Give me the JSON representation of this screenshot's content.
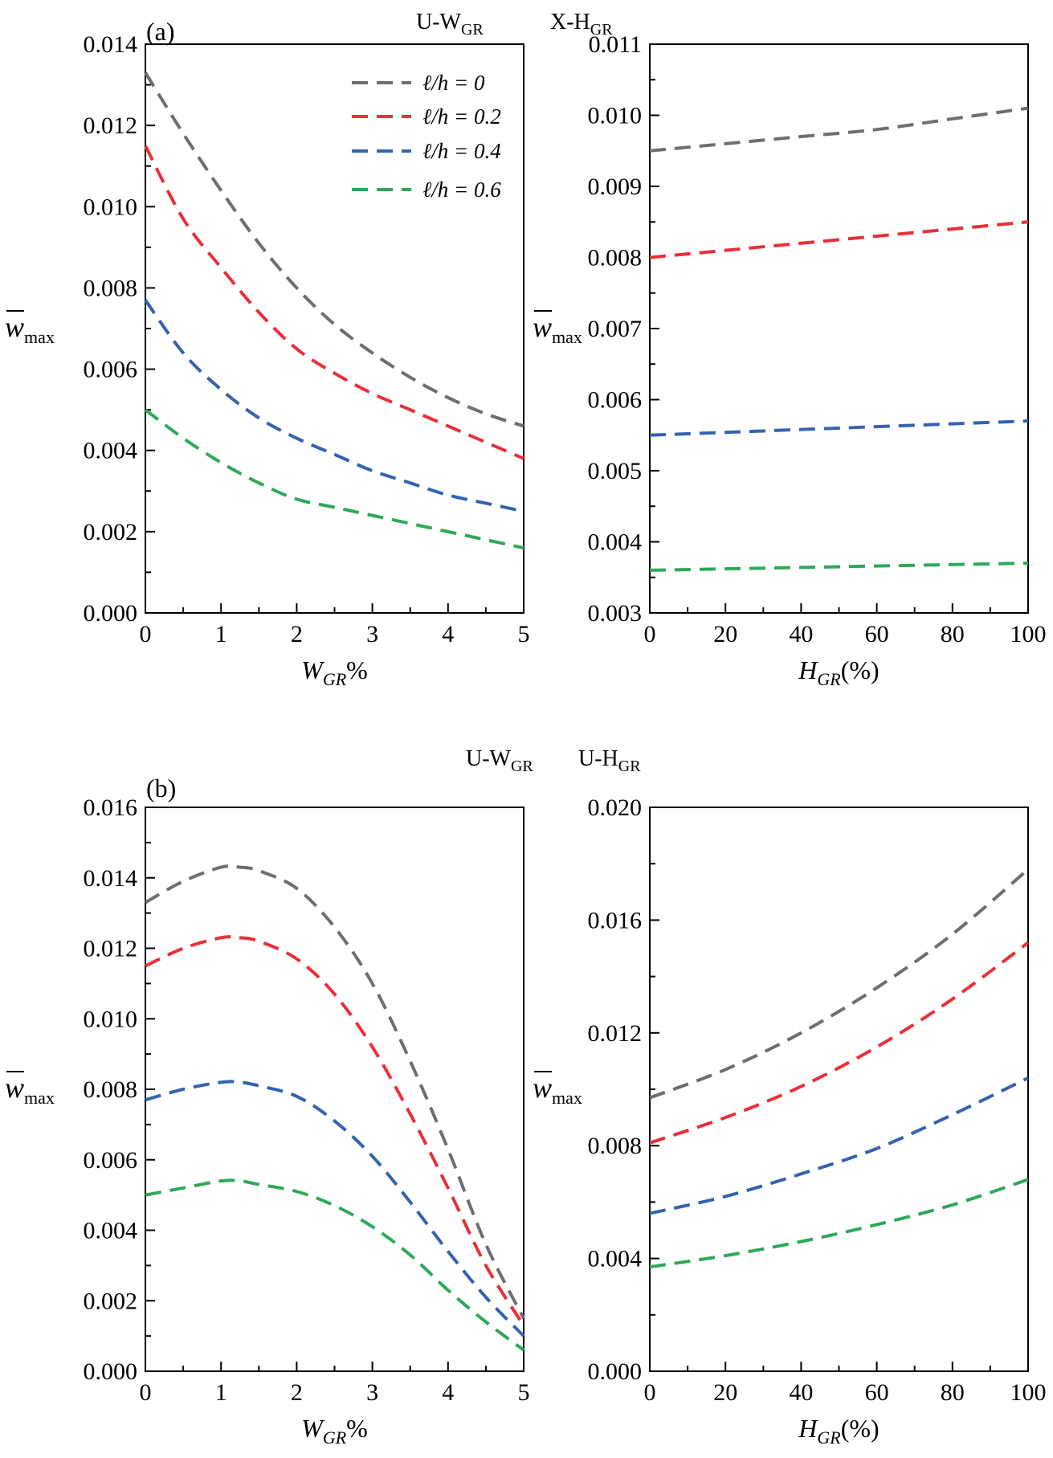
{
  "figure": {
    "group_a_tag": "(a)",
    "group_b_tag": "(b)",
    "group_a_headers": [
      "U-W",
      "GR",
      "X-H",
      "GR"
    ],
    "group_b_headers": [
      "U-W",
      "GR",
      "U-H",
      "GR"
    ]
  },
  "legend": {
    "entries": [
      "ℓ/h = 0",
      "ℓ/h = 0.2",
      "ℓ/h = 0.4",
      "ℓ/h = 0.6"
    ]
  },
  "colors": {
    "s0": "#6e6e6e",
    "s1": "#e8303a",
    "s2": "#3363b0",
    "s3": "#2fa85a"
  },
  "chart_data": [
    {
      "type": "line",
      "panel": "a-left",
      "xlabel_main": "W",
      "xlabel_sub": "GR",
      "xlabel_suffix": "%",
      "ylabel_main": "w",
      "ylabel_sub": "max",
      "xlim": [
        0,
        5
      ],
      "ylim": [
        0,
        0.014
      ],
      "xticks": [
        0,
        1,
        2,
        3,
        4,
        5
      ],
      "xtick_labels": [
        "0",
        "1",
        "2",
        "3",
        "4",
        "5"
      ],
      "yticks": [
        0,
        0.002,
        0.004,
        0.006,
        0.008,
        0.01,
        0.012,
        0.014
      ],
      "ytick_labels": [
        "0.000",
        "0.002",
        "0.004",
        "0.006",
        "0.008",
        "0.010",
        "0.012",
        "0.014"
      ],
      "x": [
        0,
        0.5,
        1,
        1.5,
        2,
        2.5,
        3,
        3.5,
        4,
        4.5,
        5
      ],
      "series": [
        {
          "name": "ℓ/h = 0",
          "values": [
            0.0133,
            0.0118,
            0.0104,
            0.0091,
            0.008,
            0.0071,
            0.0064,
            0.0058,
            0.0053,
            0.0049,
            0.0046
          ]
        },
        {
          "name": "ℓ/h = 0.2",
          "values": [
            0.0115,
            0.0097,
            0.0085,
            0.0074,
            0.0065,
            0.0059,
            0.0054,
            0.005,
            0.0046,
            0.0042,
            0.0038
          ]
        },
        {
          "name": "ℓ/h = 0.4",
          "values": [
            0.0077,
            0.0064,
            0.0055,
            0.0048,
            0.0043,
            0.0039,
            0.0035,
            0.0032,
            0.0029,
            0.0027,
            0.0025
          ]
        },
        {
          "name": "ℓ/h = 0.6",
          "values": [
            0.005,
            0.0043,
            0.0037,
            0.0032,
            0.0028,
            0.0026,
            0.0024,
            0.0022,
            0.002,
            0.0018,
            0.0016
          ]
        }
      ]
    },
    {
      "type": "line",
      "panel": "a-right",
      "xlabel_main": "H",
      "xlabel_sub": "GR",
      "xlabel_suffix": "(%)",
      "ylabel_main": "w",
      "ylabel_sub": "max",
      "xlim": [
        0,
        100
      ],
      "ylim": [
        0.003,
        0.011
      ],
      "xticks": [
        0,
        20,
        40,
        60,
        80,
        100
      ],
      "xtick_labels": [
        "0",
        "20",
        "40",
        "60",
        "80",
        "100"
      ],
      "yticks": [
        0.003,
        0.004,
        0.005,
        0.006,
        0.007,
        0.008,
        0.009,
        0.01,
        0.011
      ],
      "ytick_labels": [
        "0.003",
        "0.004",
        "0.005",
        "0.006",
        "0.007",
        "0.008",
        "0.009",
        "0.010",
        "0.011"
      ],
      "x": [
        0,
        20,
        40,
        60,
        80,
        100
      ],
      "series": [
        {
          "name": "ℓ/h = 0",
          "values": [
            0.0095,
            0.0096,
            0.0097,
            0.0098,
            0.00995,
            0.0101
          ]
        },
        {
          "name": "ℓ/h = 0.2",
          "values": [
            0.008,
            0.0081,
            0.0082,
            0.0083,
            0.0084,
            0.0085
          ]
        },
        {
          "name": "ℓ/h = 0.4",
          "values": [
            0.0055,
            0.00554,
            0.00558,
            0.00562,
            0.00566,
            0.0057
          ]
        },
        {
          "name": "ℓ/h = 0.6",
          "values": [
            0.0036,
            0.00362,
            0.00364,
            0.00366,
            0.00368,
            0.0037
          ]
        }
      ]
    },
    {
      "type": "line",
      "panel": "b-left",
      "xlabel_main": "W",
      "xlabel_sub": "GR",
      "xlabel_suffix": "%",
      "ylabel_main": "w",
      "ylabel_sub": "max",
      "xlim": [
        0,
        5
      ],
      "ylim": [
        0,
        0.016
      ],
      "xticks": [
        0,
        1,
        2,
        3,
        4,
        5
      ],
      "xtick_labels": [
        "0",
        "1",
        "2",
        "3",
        "4",
        "5"
      ],
      "yticks": [
        0,
        0.002,
        0.004,
        0.006,
        0.008,
        0.01,
        0.012,
        0.014,
        0.016
      ],
      "ytick_labels": [
        "0.000",
        "0.002",
        "0.004",
        "0.006",
        "0.008",
        "0.010",
        "0.012",
        "0.014",
        "0.016"
      ],
      "x": [
        0,
        0.5,
        1,
        1.25,
        1.5,
        2,
        2.5,
        3,
        3.5,
        4,
        4.5,
        5
      ],
      "series": [
        {
          "name": "ℓ/h = 0",
          "values": [
            0.0133,
            0.0139,
            0.0143,
            0.0143,
            0.0142,
            0.0137,
            0.0126,
            0.011,
            0.0088,
            0.0063,
            0.0036,
            0.0015
          ]
        },
        {
          "name": "ℓ/h = 0.2",
          "values": [
            0.0115,
            0.012,
            0.0123,
            0.0123,
            0.0122,
            0.0117,
            0.0107,
            0.0092,
            0.0073,
            0.0052,
            0.003,
            0.0013
          ]
        },
        {
          "name": "ℓ/h = 0.4",
          "values": [
            0.0077,
            0.008,
            0.0082,
            0.0082,
            0.0081,
            0.0078,
            0.0071,
            0.0061,
            0.0048,
            0.0034,
            0.0021,
            0.001
          ]
        },
        {
          "name": "ℓ/h = 0.6",
          "values": [
            0.005,
            0.0052,
            0.0054,
            0.0054,
            0.0053,
            0.0051,
            0.0047,
            0.0041,
            0.0033,
            0.0023,
            0.0014,
            0.0006
          ]
        }
      ]
    },
    {
      "type": "line",
      "panel": "b-right",
      "xlabel_main": "H",
      "xlabel_sub": "GR",
      "xlabel_suffix": "(%)",
      "ylabel_main": "w",
      "ylabel_sub": "max",
      "xlim": [
        0,
        100
      ],
      "ylim": [
        0,
        0.02
      ],
      "xticks": [
        0,
        20,
        40,
        60,
        80,
        100
      ],
      "xtick_labels": [
        "0",
        "20",
        "40",
        "60",
        "80",
        "100"
      ],
      "yticks": [
        0,
        0.004,
        0.008,
        0.012,
        0.016,
        0.02
      ],
      "ytick_labels": [
        "0.000",
        "0.004",
        "0.008",
        "0.012",
        "0.016",
        "0.020"
      ],
      "x": [
        0,
        20,
        40,
        60,
        80,
        100
      ],
      "series": [
        {
          "name": "ℓ/h = 0",
          "values": [
            0.0097,
            0.0107,
            0.012,
            0.0136,
            0.0155,
            0.0178
          ]
        },
        {
          "name": "ℓ/h = 0.2",
          "values": [
            0.0081,
            0.009,
            0.0101,
            0.0115,
            0.0132,
            0.0152
          ]
        },
        {
          "name": "ℓ/h = 0.4",
          "values": [
            0.0056,
            0.0062,
            0.007,
            0.0079,
            0.0091,
            0.0104
          ]
        },
        {
          "name": "ℓ/h = 0.6",
          "values": [
            0.0037,
            0.0041,
            0.0046,
            0.0052,
            0.0059,
            0.0068
          ]
        }
      ]
    }
  ]
}
